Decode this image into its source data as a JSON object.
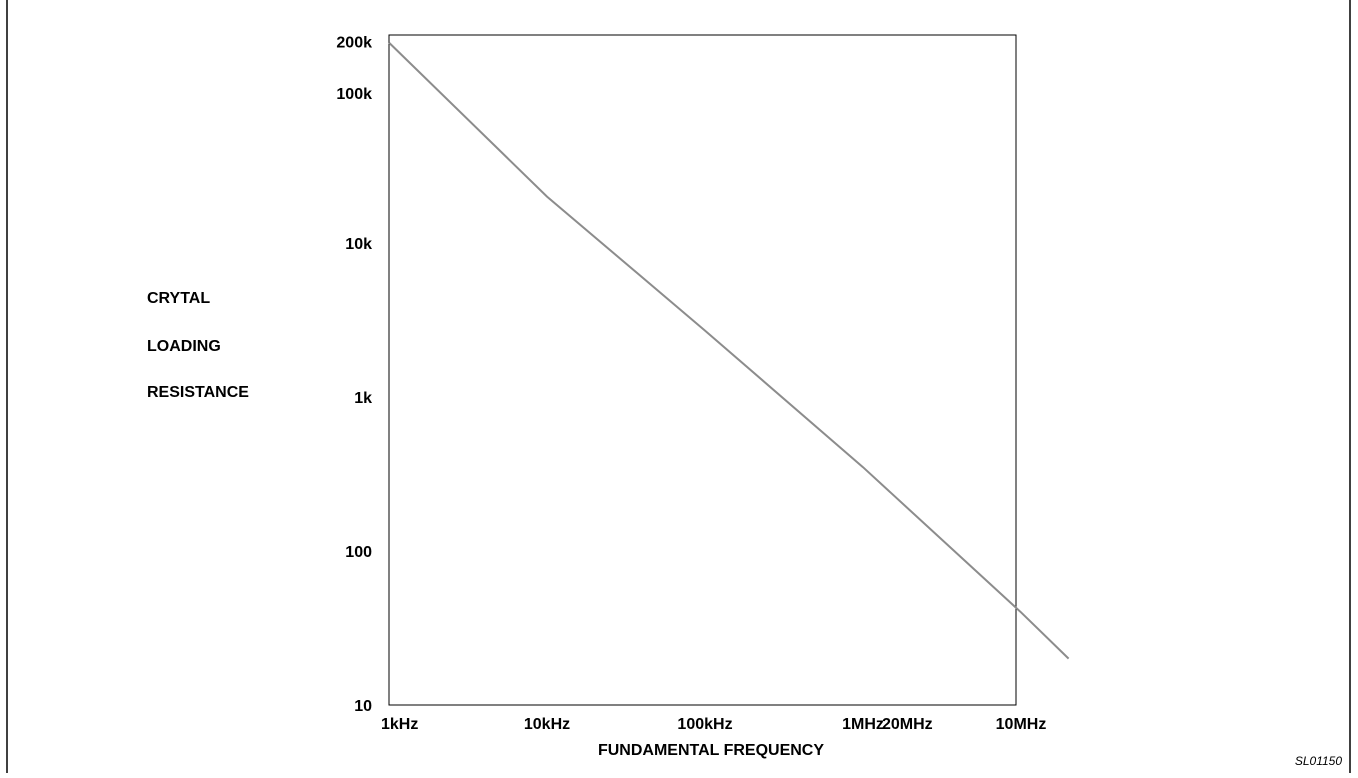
{
  "chart_data": {
    "type": "line",
    "title": "",
    "xlabel": "FUNDAMENTAL FREQUENCY",
    "ylabel_lines": [
      "CRYTAL",
      "LOADING",
      "RESISTANCE"
    ],
    "x_scale": "log",
    "y_scale": "log",
    "xlim": [
      1000,
      20000000
    ],
    "ylim": [
      10,
      200000
    ],
    "x_ticks": [
      {
        "value": 1000,
        "label": "1kHz"
      },
      {
        "value": 10000,
        "label": "10kHz"
      },
      {
        "value": 100000,
        "label": "100kHz"
      },
      {
        "value": 1000000,
        "label": "1MHz"
      },
      {
        "value": 10000000,
        "label": "10MHz"
      },
      {
        "value": 20000000,
        "label": "20MHz"
      }
    ],
    "y_ticks": [
      {
        "value": 10,
        "label": "10"
      },
      {
        "value": 100,
        "label": "100"
      },
      {
        "value": 1000,
        "label": "1k"
      },
      {
        "value": 10000,
        "label": "10k"
      },
      {
        "value": 100000,
        "label": "100k"
      },
      {
        "value": 200000,
        "label": "200k"
      }
    ],
    "grid": false,
    "series": [
      {
        "color": "#8c8c8c",
        "x": [
          1000,
          10000,
          100000,
          1000000,
          10000000,
          20000000
        ],
        "y": [
          200000,
          20000,
          2700,
          350,
          40,
          20
        ]
      }
    ]
  },
  "figure_id": "SL01150"
}
